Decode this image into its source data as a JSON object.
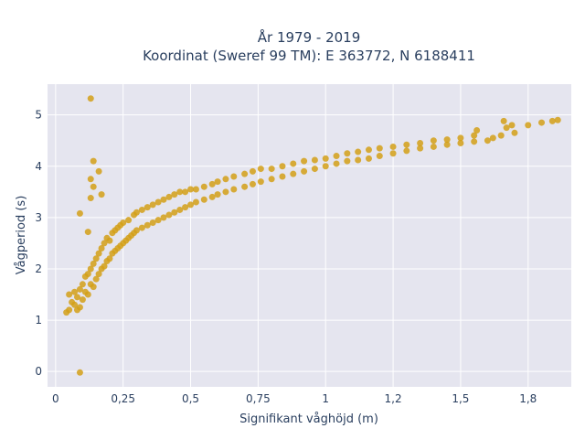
{
  "chart_data": {
    "type": "scatter",
    "title": "År 1979 - 2019",
    "subtitle": "Koordinat (Sweref 99 TM): E 363772, N 6188411",
    "xlabel": "Signifikant våghöjd (m)",
    "ylabel": "Vågperiod (s)",
    "xlim": [
      -0.03,
      1.91
    ],
    "ylim": [
      -0.3,
      5.6
    ],
    "xticks": [
      0,
      0.25,
      0.5,
      0.75,
      1,
      1.25,
      1.5,
      1.75
    ],
    "xtick_labels": [
      "0",
      "0,25",
      "0,5",
      "0,75",
      "1",
      "1,2",
      "1,5",
      "1,8"
    ],
    "yticks": [
      0,
      1,
      2,
      3,
      4,
      5
    ],
    "ytick_labels": [
      "0",
      "1",
      "2",
      "3",
      "4",
      "5"
    ],
    "grid": true,
    "marker_color": "#D4A017",
    "plot_bg": "#E5E5EF",
    "series": [
      {
        "name": "",
        "points": [
          [
            0.04,
            1.15
          ],
          [
            0.05,
            1.2
          ],
          [
            0.05,
            1.5
          ],
          [
            0.06,
            1.35
          ],
          [
            0.07,
            1.3
          ],
          [
            0.07,
            1.55
          ],
          [
            0.08,
            1.2
          ],
          [
            0.08,
            1.45
          ],
          [
            0.09,
            1.6
          ],
          [
            0.09,
            1.25
          ],
          [
            0.1,
            1.4
          ],
          [
            0.1,
            1.7
          ],
          [
            0.11,
            1.55
          ],
          [
            0.11,
            1.85
          ],
          [
            0.12,
            1.5
          ],
          [
            0.12,
            1.9
          ],
          [
            0.13,
            1.7
          ],
          [
            0.13,
            2.0
          ],
          [
            0.14,
            1.65
          ],
          [
            0.14,
            2.1
          ],
          [
            0.15,
            1.8
          ],
          [
            0.15,
            2.2
          ],
          [
            0.16,
            1.9
          ],
          [
            0.16,
            2.3
          ],
          [
            0.17,
            2.0
          ],
          [
            0.17,
            2.4
          ],
          [
            0.18,
            2.05
          ],
          [
            0.18,
            2.5
          ],
          [
            0.19,
            2.15
          ],
          [
            0.19,
            2.6
          ],
          [
            0.2,
            2.2
          ],
          [
            0.2,
            2.55
          ],
          [
            0.21,
            2.3
          ],
          [
            0.21,
            2.7
          ],
          [
            0.22,
            2.35
          ],
          [
            0.22,
            2.75
          ],
          [
            0.23,
            2.4
          ],
          [
            0.23,
            2.8
          ],
          [
            0.24,
            2.45
          ],
          [
            0.24,
            2.85
          ],
          [
            0.25,
            2.5
          ],
          [
            0.25,
            2.9
          ],
          [
            0.26,
            2.55
          ],
          [
            0.27,
            2.6
          ],
          [
            0.27,
            2.95
          ],
          [
            0.28,
            2.65
          ],
          [
            0.29,
            2.7
          ],
          [
            0.29,
            3.05
          ],
          [
            0.3,
            2.75
          ],
          [
            0.3,
            3.1
          ],
          [
            0.32,
            2.8
          ],
          [
            0.32,
            3.15
          ],
          [
            0.34,
            2.85
          ],
          [
            0.34,
            3.2
          ],
          [
            0.36,
            2.9
          ],
          [
            0.36,
            3.25
          ],
          [
            0.38,
            2.95
          ],
          [
            0.38,
            3.3
          ],
          [
            0.4,
            3.0
          ],
          [
            0.4,
            3.35
          ],
          [
            0.42,
            3.05
          ],
          [
            0.42,
            3.4
          ],
          [
            0.44,
            3.1
          ],
          [
            0.44,
            3.45
          ],
          [
            0.46,
            3.15
          ],
          [
            0.46,
            3.5
          ],
          [
            0.48,
            3.2
          ],
          [
            0.48,
            3.5
          ],
          [
            0.5,
            3.25
          ],
          [
            0.5,
            3.55
          ],
          [
            0.52,
            3.3
          ],
          [
            0.52,
            3.55
          ],
          [
            0.55,
            3.35
          ],
          [
            0.55,
            3.6
          ],
          [
            0.58,
            3.4
          ],
          [
            0.58,
            3.65
          ],
          [
            0.6,
            3.45
          ],
          [
            0.6,
            3.7
          ],
          [
            0.63,
            3.5
          ],
          [
            0.63,
            3.75
          ],
          [
            0.66,
            3.55
          ],
          [
            0.66,
            3.8
          ],
          [
            0.7,
            3.6
          ],
          [
            0.7,
            3.85
          ],
          [
            0.73,
            3.65
          ],
          [
            0.73,
            3.9
          ],
          [
            0.76,
            3.7
          ],
          [
            0.76,
            3.95
          ],
          [
            0.8,
            3.75
          ],
          [
            0.8,
            3.95
          ],
          [
            0.84,
            3.8
          ],
          [
            0.84,
            4.0
          ],
          [
            0.88,
            3.85
          ],
          [
            0.88,
            4.05
          ],
          [
            0.92,
            3.9
          ],
          [
            0.92,
            4.1
          ],
          [
            0.96,
            3.95
          ],
          [
            0.96,
            4.12
          ],
          [
            1.0,
            4.0
          ],
          [
            1.0,
            4.15
          ],
          [
            1.04,
            4.05
          ],
          [
            1.04,
            4.2
          ],
          [
            1.08,
            4.1
          ],
          [
            1.08,
            4.25
          ],
          [
            1.12,
            4.12
          ],
          [
            1.12,
            4.28
          ],
          [
            1.16,
            4.15
          ],
          [
            1.16,
            4.32
          ],
          [
            1.2,
            4.2
          ],
          [
            1.2,
            4.35
          ],
          [
            1.25,
            4.25
          ],
          [
            1.25,
            4.38
          ],
          [
            1.3,
            4.3
          ],
          [
            1.3,
            4.42
          ],
          [
            1.35,
            4.35
          ],
          [
            1.35,
            4.45
          ],
          [
            1.4,
            4.38
          ],
          [
            1.4,
            4.5
          ],
          [
            1.45,
            4.42
          ],
          [
            1.45,
            4.52
          ],
          [
            1.5,
            4.45
          ],
          [
            1.5,
            4.55
          ],
          [
            1.55,
            4.48
          ],
          [
            1.55,
            4.6
          ],
          [
            1.6,
            4.5
          ],
          [
            1.62,
            4.55
          ],
          [
            1.65,
            4.6
          ],
          [
            1.67,
            4.75
          ],
          [
            1.7,
            4.65
          ],
          [
            1.75,
            4.8
          ],
          [
            1.8,
            4.85
          ],
          [
            1.84,
            4.88
          ],
          [
            1.86,
            4.9
          ],
          [
            1.66,
            4.88
          ],
          [
            1.69,
            4.8
          ],
          [
            1.56,
            4.7
          ],
          [
            0.13,
            5.32
          ],
          [
            0.14,
            4.1
          ],
          [
            0.16,
            3.9
          ],
          [
            0.13,
            3.75
          ],
          [
            0.14,
            3.6
          ],
          [
            0.17,
            3.45
          ],
          [
            0.13,
            3.38
          ],
          [
            0.09,
            3.08
          ],
          [
            0.12,
            2.72
          ],
          [
            0.09,
            -0.02
          ]
        ]
      }
    ]
  }
}
